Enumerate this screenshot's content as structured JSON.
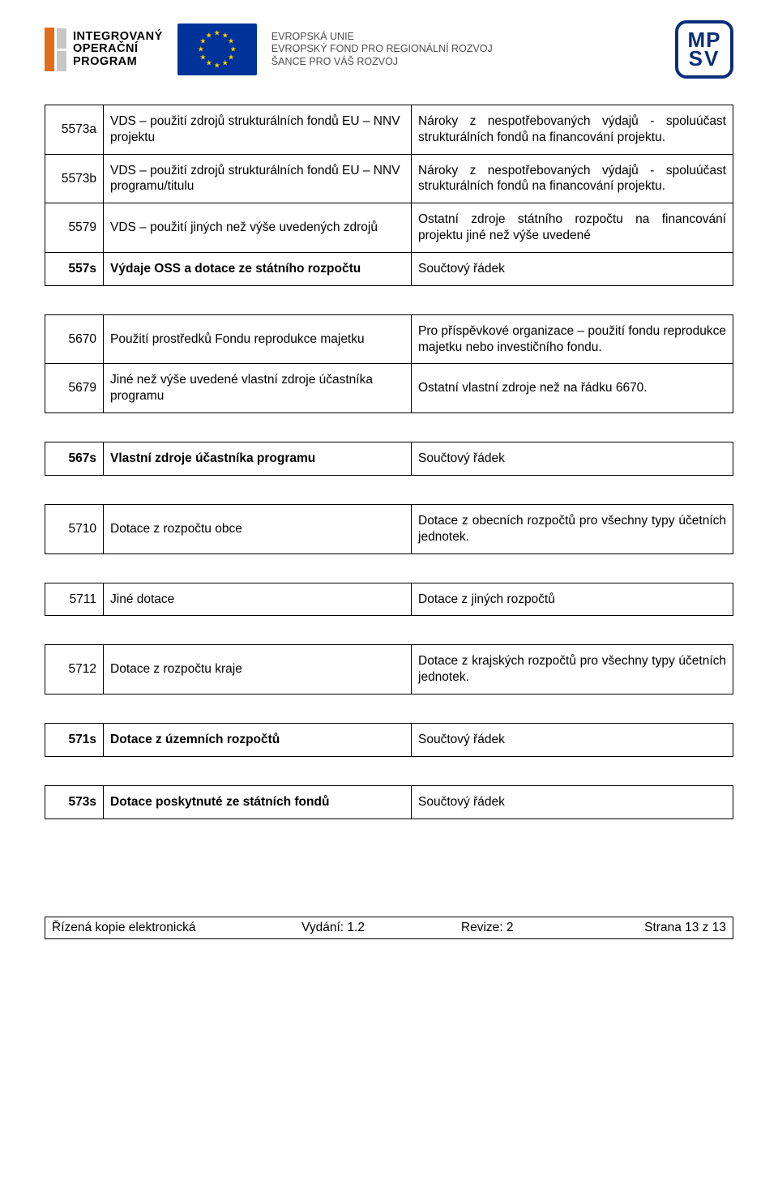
{
  "header": {
    "iop": {
      "line1": "INTEGROVANÝ",
      "line2": "OPERAČNÍ",
      "line3": "PROGRAM"
    },
    "eu": {
      "line1": "EVROPSKÁ UNIE",
      "line2": "EVROPSKÝ FOND PRO REGIONÁLNÍ ROZVOJ",
      "line3": "ŠANCE PRO VÁŠ ROZVOJ"
    },
    "mpsv": {
      "top": "MP",
      "bottom": "SV"
    },
    "colors": {
      "iop_orange": "#e36c1c",
      "iop_gray": "#c7c7c7",
      "eu_blue": "#003399",
      "eu_gold": "#ffcc00",
      "mpsv_blue": "#0a2f7a"
    }
  },
  "rows": [
    {
      "type": "row",
      "code": "5573a",
      "name": "VDS – použití zdrojů strukturálních fondů EU – NNV projektu",
      "desc": "Nároky z nespotřebovaných výdajů - spoluúčast strukturálních fondů na financování projektu."
    },
    {
      "type": "row",
      "code": "5573b",
      "name": "VDS – použití zdrojů strukturálních fondů EU – NNV programu/titulu",
      "desc": "Nároky z nespotřebovaných výdajů - spoluúčast strukturálních fondů na financování projektu."
    },
    {
      "type": "row",
      "code": "5579",
      "name": "VDS – použití jiných než výše uvedených zdrojů",
      "desc": "Ostatní zdroje státního rozpočtu na financování projektu jiné než výše uvedené"
    },
    {
      "type": "sum",
      "code": "557s",
      "name": "Výdaje OSS a dotace ze státního rozpočtu",
      "desc": "Součtový řádek"
    },
    {
      "type": "gap"
    },
    {
      "type": "row",
      "code": "5670",
      "name": "Použití prostředků Fondu reprodukce majetku",
      "desc": "Pro příspěvkové organizace – použití fondu reprodukce majetku nebo investičního fondu."
    },
    {
      "type": "row",
      "code": "5679",
      "name": "Jiné než výše uvedené vlastní zdroje účastníka programu",
      "desc": "Ostatní vlastní zdroje než na řádku 6670."
    },
    {
      "type": "gap"
    },
    {
      "type": "sum",
      "code": "567s",
      "name": "Vlastní zdroje účastníka programu",
      "desc": "Součtový řádek"
    },
    {
      "type": "gap"
    },
    {
      "type": "row",
      "code": "5710",
      "name": "Dotace z rozpočtu obce",
      "desc": "Dotace z obecních rozpočtů pro všechny typy účetních jednotek."
    },
    {
      "type": "gap"
    },
    {
      "type": "row",
      "code": "5711",
      "name": "Jiné dotace",
      "desc": "Dotace z jiných rozpočtů"
    },
    {
      "type": "gap"
    },
    {
      "type": "row",
      "code": "5712",
      "name": "Dotace z rozpočtu kraje",
      "desc": "Dotace z krajských rozpočtů pro všechny typy účetních jednotek."
    },
    {
      "type": "gap"
    },
    {
      "type": "sum",
      "code": "571s",
      "name": "Dotace z územních rozpočtů",
      "desc": "Součtový řádek"
    },
    {
      "type": "gap"
    },
    {
      "type": "sum",
      "code": "573s",
      "name": "Dotace poskytnuté ze státních fondů",
      "desc": "Součtový řádek"
    }
  ],
  "footer": {
    "left": "Řízená kopie elektronická",
    "edition_label": "Vydání: 1.2",
    "revision_label": "Revize: 2",
    "page_label": "Strana 13 z 13"
  }
}
